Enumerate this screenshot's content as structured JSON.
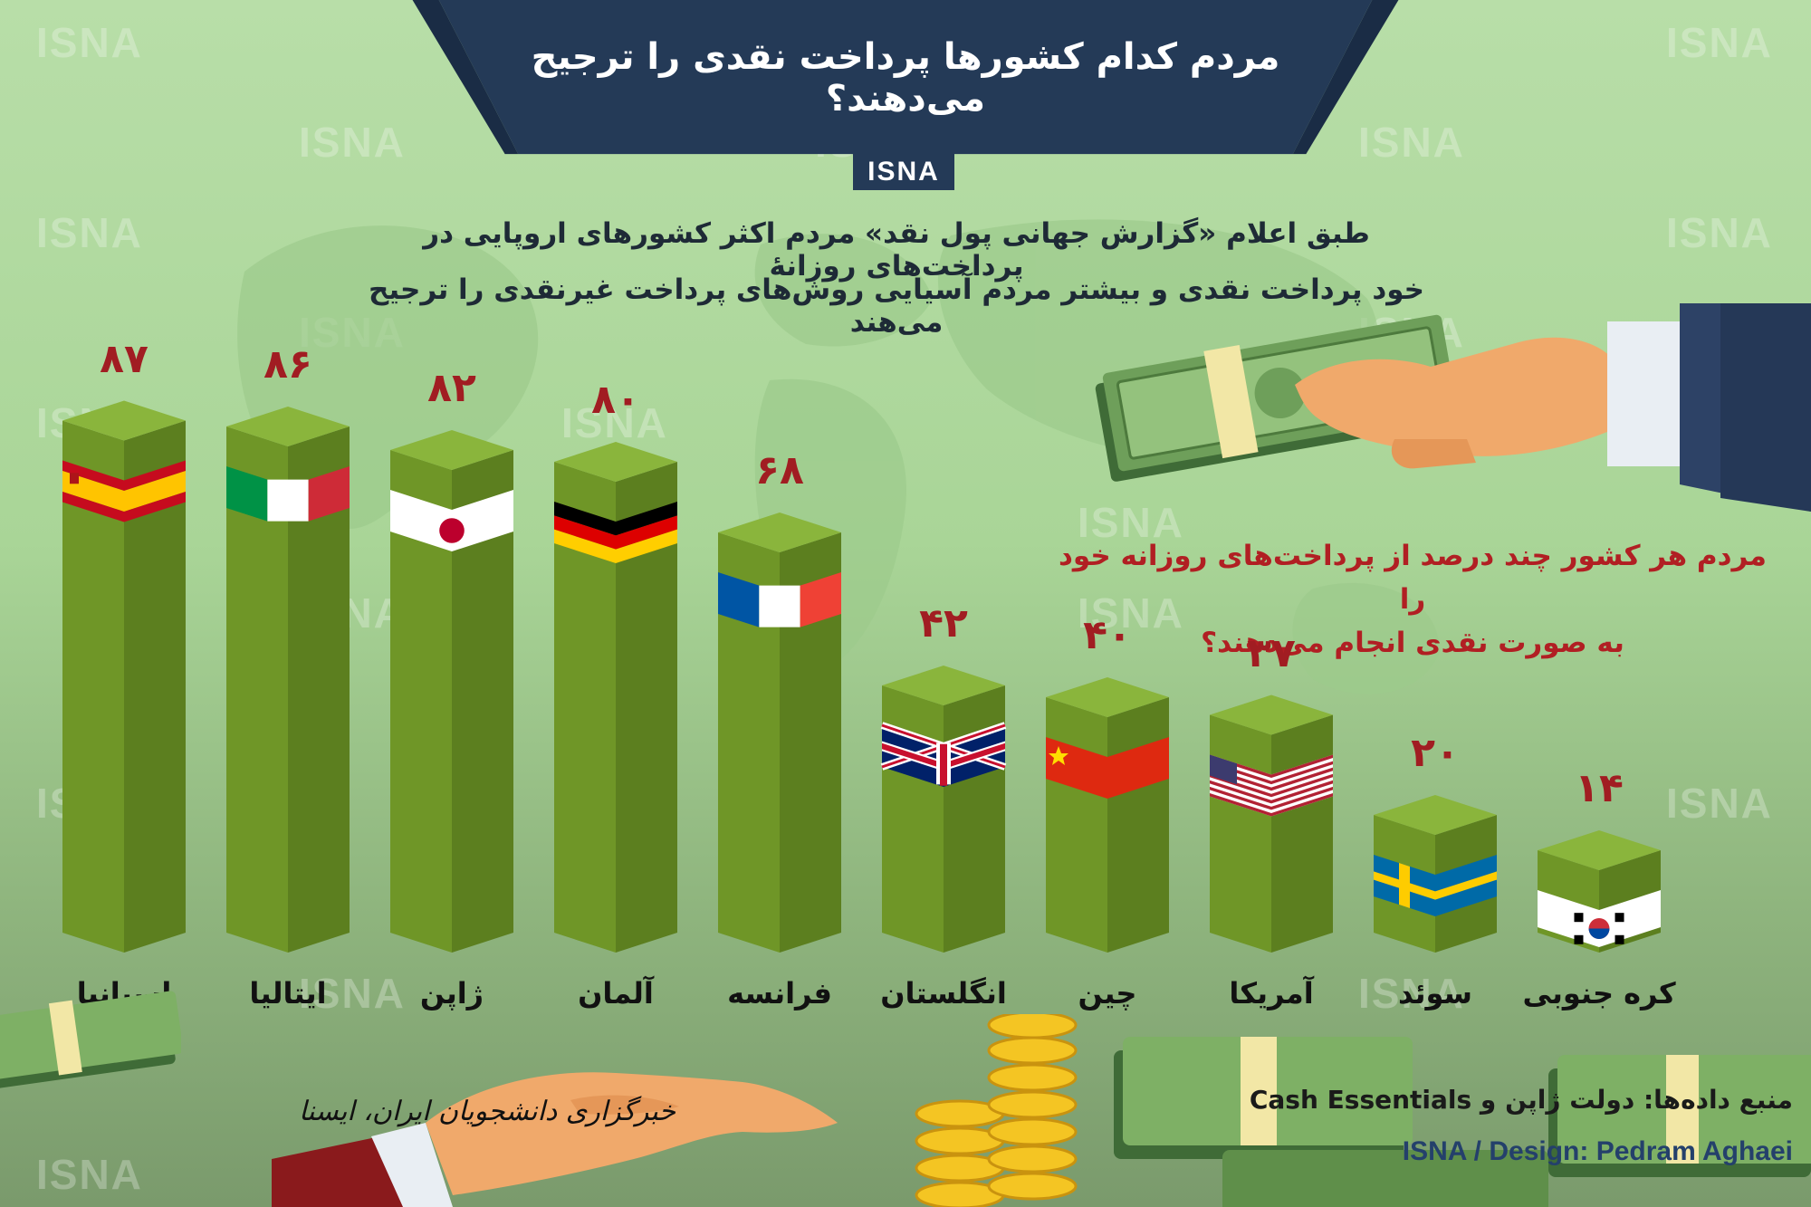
{
  "header": {
    "title": "مردم کدام کشورها پرداخت نقدی را ترجیح می‌دهند؟",
    "logo": "ISNA"
  },
  "intro": {
    "line1": "طبق اعلام «گزارش جهانی پول نقد» مردم اکثر کشورهای اروپایی در پرداخت‌های روزانهٔ",
    "line2": "خود پرداخت نقدی و بیشتر مردم آسیایی روش‌های پرداخت غیرنقدی را ترجیح می‌هند"
  },
  "question": {
    "line1": "مردم هر کشور چند درصد از پرداخت‌های روزانه خود را",
    "line2": "به صورت نقدی انجام می‌دهند؟"
  },
  "watermark": "ISNA",
  "chart_data": {
    "type": "bar",
    "categories": [
      "اسپانیا",
      "ایتالیا",
      "ژاپن",
      "آلمان",
      "فرانسه",
      "انگلستان",
      "چین",
      "آمریکا",
      "سوئد",
      "کره جنوبی"
    ],
    "values": [
      87,
      86,
      82,
      80,
      68,
      42,
      40,
      37,
      20,
      14
    ],
    "value_labels": [
      "۸۷",
      "۸۶",
      "۸۲",
      "۸۰",
      "۶۸",
      "۴۲",
      "۴۰",
      "۳۷",
      "۲۰",
      "۱۴"
    ],
    "flags": [
      "spain-flag",
      "italy-flag",
      "japan-flag",
      "germany-flag",
      "france-flag",
      "uk-flag",
      "china-flag",
      "usa-flag",
      "sweden-flag",
      "south-korea-flag"
    ],
    "ylim": [
      0,
      100
    ],
    "colors": {
      "bar_front": "#6f9627",
      "bar_side": "#5c7f1f",
      "bar_top": "#8ab53c",
      "value": "#a11d22"
    }
  },
  "footer": {
    "source": "منبع داده‌ها: دولت ژاپن و Cash Essentials",
    "credit": "ISNA / Design: Pedram Aghaei",
    "agency": "خبرگزاری دانشجویان ایران، ایسنا"
  },
  "colors": {
    "banner": "#243a57",
    "background": "#a9d597",
    "accent_red": "#b11f23"
  }
}
